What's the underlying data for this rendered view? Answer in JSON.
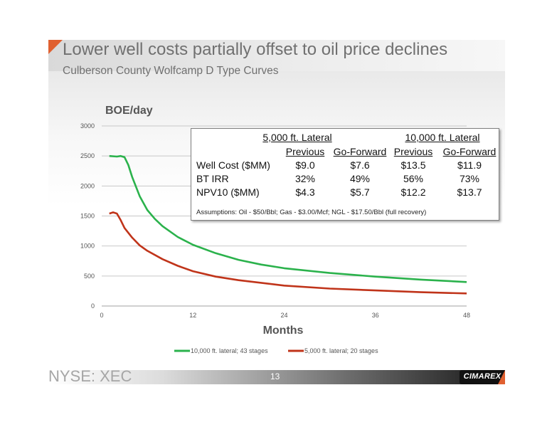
{
  "slide": {
    "title": "Lower well costs partially offset to oil price declines",
    "subtitle": "Culberson County Wolfcamp D Type Curves",
    "ticker": "NYSE: XEC",
    "page_number": "13",
    "logo_text": "CIMAREX",
    "accent_color": "#e06030"
  },
  "chart_data": {
    "type": "line",
    "ylabel": "BOE/day",
    "xlabel": "Months",
    "xlim": [
      0,
      48
    ],
    "ylim": [
      0,
      3000
    ],
    "x_ticks": [
      0,
      12,
      24,
      36,
      48
    ],
    "y_ticks": [
      0,
      500,
      1000,
      1500,
      2000,
      2500,
      3000
    ],
    "grid": true,
    "legend_position": "bottom",
    "series": [
      {
        "name": "10,000 ft. lateral; 43 stages",
        "color": "#2bb24c",
        "x": [
          1,
          2,
          2.5,
          3,
          3.5,
          4,
          5,
          6,
          7,
          8,
          10,
          12,
          15,
          18,
          21,
          24,
          30,
          36,
          42,
          48
        ],
        "y": [
          2500,
          2490,
          2500,
          2480,
          2350,
          2150,
          1830,
          1600,
          1450,
          1330,
          1150,
          1020,
          880,
          770,
          690,
          630,
          550,
          490,
          440,
          400
        ]
      },
      {
        "name": "5,000 ft. lateral; 20 stages",
        "color": "#c0341a",
        "x": [
          1,
          1.5,
          2,
          2.5,
          3,
          4,
          5,
          6,
          8,
          10,
          12,
          15,
          18,
          24,
          30,
          36,
          42,
          48
        ],
        "y": [
          1540,
          1560,
          1540,
          1430,
          1300,
          1140,
          1010,
          920,
          780,
          670,
          580,
          490,
          430,
          340,
          290,
          260,
          230,
          210
        ]
      }
    ]
  },
  "table": {
    "group_headers": [
      "5,000 ft. Lateral",
      "10,000 ft. Lateral"
    ],
    "sub_headers": [
      "Previous",
      "Go-Forward",
      "Previous",
      "Go-Forward"
    ],
    "rows": [
      {
        "label": "Well Cost ($MM)",
        "values": [
          "$9.0",
          "$7.6",
          "$13.5",
          "$11.9"
        ]
      },
      {
        "label": "BT IRR",
        "values": [
          "32%",
          "49%",
          "56%",
          "73%"
        ]
      },
      {
        "label": "NPV10 ($MM)",
        "values": [
          "$4.3",
          "$5.7",
          "$12.2",
          "$13.7"
        ]
      }
    ],
    "assumptions": "Assumptions:  Oil - $50/Bbl; Gas - $3.00/Mcf; NGL - $17.50/Bbl (full recovery)"
  }
}
